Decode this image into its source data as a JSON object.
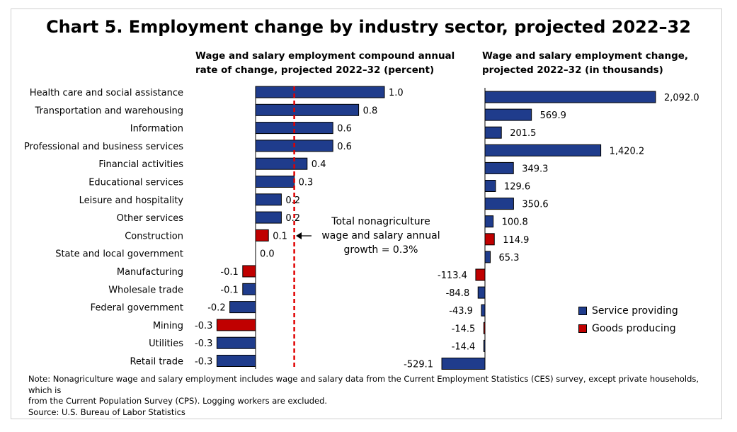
{
  "title": "Chart 5. Employment change by industry sector, projected 2022–32",
  "left_subtitle_line1": "Wage and salary employment compound annual",
  "left_subtitle_line2": "rate of change, projected 2022–32 (percent)",
  "right_subtitle_line1": "Wage and salary employment change,",
  "right_subtitle_line2": "projected 2022–32 (in thousands)",
  "annotation_line1": "Total nonagriculture",
  "annotation_line2": "wage and salary annual",
  "annotation_line3": "growth = 0.3%",
  "legend": [
    {
      "label": "Service providing",
      "color": "#1f3c8c"
    },
    {
      "label": "Goods producing",
      "color": "#c00000"
    }
  ],
  "note_line1": "Note: Nonagriculture wage and salary employment includes wage and salary data from the Current Employment Statistics (CES) survey, except private households, which is",
  "note_line2": "from the Current Population Survey (CPS). Logging workers are excluded.",
  "note_line3": "Source: U.S. Bureau of Labor Statistics",
  "chart_data": [
    {
      "type": "bar",
      "orientation": "horizontal",
      "categories": [
        "Health care and social assistance",
        "Transportation and warehousing",
        "Information",
        "Professional and business services",
        "Financial activities",
        "Educational services",
        "Leisure and hospitality",
        "Other services",
        "Construction",
        "State and local government",
        "Manufacturing",
        "Wholesale trade",
        "Federal government",
        "Mining",
        "Utilities",
        "Retail trade"
      ],
      "values": [
        1.0,
        0.8,
        0.6,
        0.6,
        0.4,
        0.3,
        0.2,
        0.2,
        0.1,
        0.0,
        -0.1,
        -0.1,
        -0.2,
        -0.3,
        -0.3,
        -0.3
      ],
      "value_labels": [
        "1.0",
        "0.8",
        "0.6",
        "0.6",
        "0.4",
        "0.3",
        "0.2",
        "0.2",
        "0.1",
        "0.0",
        "-0.1",
        "-0.1",
        "-0.2",
        "-0.3",
        "-0.3",
        "-0.3"
      ],
      "groups": [
        "service",
        "service",
        "service",
        "service",
        "service",
        "service",
        "service",
        "service",
        "goods",
        "service",
        "goods",
        "service",
        "service",
        "goods",
        "service",
        "service"
      ],
      "reference_line": {
        "value": 0.3,
        "style": "dashed",
        "color": "#e00000"
      }
    },
    {
      "type": "bar",
      "orientation": "horizontal",
      "categories": [
        "Health care and social assistance",
        "Transportation and warehousing",
        "Information",
        "Professional and business services",
        "Financial activities",
        "Educational services",
        "Leisure and hospitality",
        "Other services",
        "Construction",
        "State and local government",
        "Manufacturing",
        "Wholesale trade",
        "Federal government",
        "Mining",
        "Utilities",
        "Retail trade"
      ],
      "values": [
        2092.0,
        569.9,
        201.5,
        1420.2,
        349.3,
        129.6,
        350.6,
        100.8,
        114.9,
        65.3,
        -113.4,
        -84.8,
        -43.9,
        -14.5,
        -14.4,
        -529.1
      ],
      "value_labels": [
        "2,092.0",
        "569.9",
        "201.5",
        "1,420.2",
        "349.3",
        "129.6",
        "350.6",
        "100.8",
        "114.9",
        "65.3",
        "-113.4",
        "-84.8",
        "-43.9",
        "-14.5",
        "-14.4",
        "-529.1"
      ],
      "groups": [
        "service",
        "service",
        "service",
        "service",
        "service",
        "service",
        "service",
        "service",
        "goods",
        "service",
        "goods",
        "service",
        "service",
        "goods",
        "service",
        "service"
      ]
    }
  ]
}
